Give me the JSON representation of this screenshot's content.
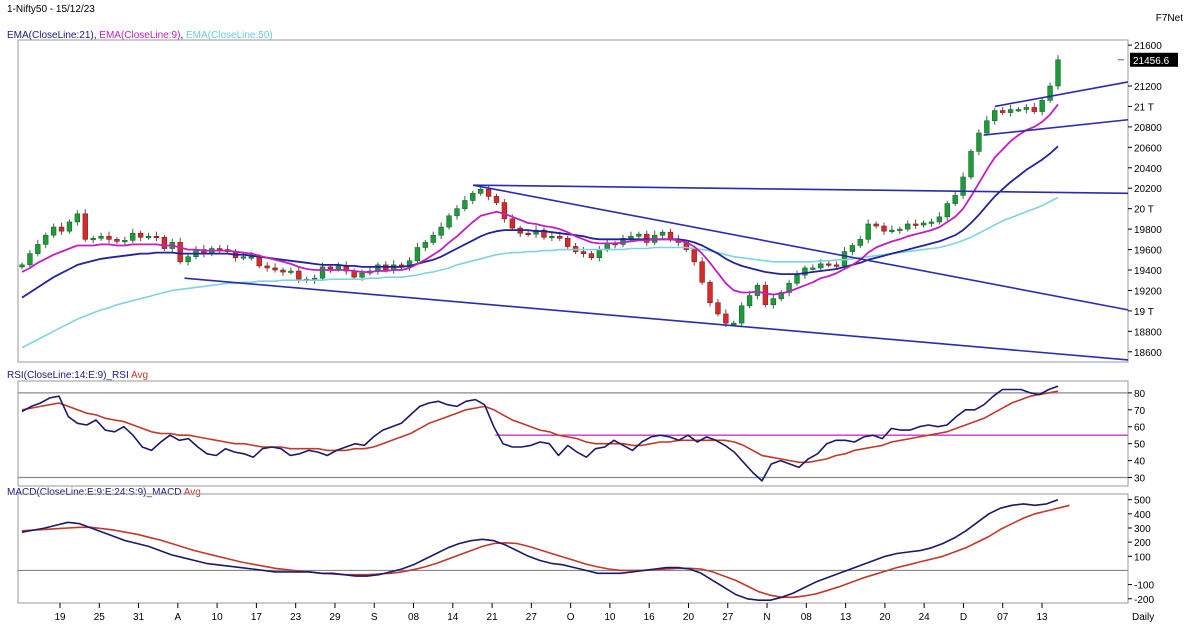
{
  "header": {
    "title": "1-Nifty50 - 15/12/23",
    "brand": "F7Net",
    "ema_labels": [
      {
        "text": "EMA(CloseLine:21)",
        "color": "#1a1a80"
      },
      {
        "text": "EMA(CloseLine:9)",
        "color": "#c020c0"
      },
      {
        "text": "EMA(CloseLine:50)",
        "color": "#66ccdd"
      }
    ],
    "last_price": "21456.6"
  },
  "chart_data": [
    {
      "type": "candlestick",
      "title": "1-Nifty50 - 15/12/23",
      "x_tick_labels": [
        "19",
        "25",
        "31",
        "A",
        "10",
        "17",
        "23",
        "29",
        "S",
        "08",
        "14",
        "21",
        "27",
        "O",
        "10",
        "16",
        "20",
        "27",
        "N",
        "08",
        "13",
        "20",
        "24",
        "D",
        "07",
        "13"
      ],
      "y_tick_labels": [
        "21600",
        "21200",
        "21 T",
        "20800",
        "20600",
        "20400",
        "20200",
        "20 T",
        "19800",
        "19600",
        "19400",
        "19200",
        "19 T",
        "18800",
        "18600"
      ],
      "ylim": [
        18500,
        21650
      ],
      "x_right_label": "Daily",
      "last_price": 21456.6,
      "close_series": [
        19450,
        19560,
        19650,
        19740,
        19820,
        19780,
        19870,
        19950,
        19700,
        19710,
        19730,
        19700,
        19680,
        19690,
        19760,
        19720,
        19730,
        19720,
        19610,
        19670,
        19480,
        19530,
        19600,
        19560,
        19610,
        19600,
        19580,
        19520,
        19530,
        19530,
        19440,
        19420,
        19400,
        19380,
        19390,
        19310,
        19300,
        19320,
        19430,
        19410,
        19440,
        19390,
        19330,
        19370,
        19390,
        19450,
        19400,
        19450,
        19430,
        19490,
        19620,
        19670,
        19740,
        19820,
        19930,
        20000,
        20080,
        20150,
        20190,
        20120,
        20060,
        19900,
        19810,
        19760,
        19750,
        19790,
        19720,
        19730,
        19710,
        19630,
        19580,
        19560,
        19520,
        19600,
        19660,
        19650,
        19710,
        19730,
        19750,
        19670,
        19740,
        19770,
        19700,
        19670,
        19600,
        19480,
        19280,
        19080,
        18970,
        18880,
        18880,
        19050,
        19150,
        19250,
        19060,
        19120,
        19180,
        19270,
        19350,
        19420,
        19420,
        19460,
        19450,
        19440,
        19580,
        19640,
        19700,
        19850,
        19830,
        19780,
        19790,
        19800,
        19850,
        19840,
        19860,
        19870,
        19920,
        20050,
        20130,
        20310,
        20560,
        20740,
        20860,
        20960,
        20940,
        20970,
        20970,
        20990,
        20950,
        21060,
        21200,
        21456.6
      ],
      "ema9": [
        19380,
        19420,
        19470,
        19510,
        19550,
        19580,
        19610,
        19640,
        19640,
        19640,
        19650,
        19650,
        19640,
        19640,
        19650,
        19650,
        19650,
        19650,
        19640,
        19640,
        19620,
        19600,
        19600,
        19590,
        19590,
        19590,
        19590,
        19580,
        19570,
        19560,
        19540,
        19520,
        19500,
        19480,
        19460,
        19430,
        19410,
        19400,
        19400,
        19400,
        19400,
        19400,
        19390,
        19380,
        19380,
        19390,
        19390,
        19400,
        19400,
        19420,
        19460,
        19500,
        19550,
        19600,
        19670,
        19730,
        19800,
        19870,
        19930,
        19950,
        19970,
        19950,
        19920,
        19890,
        19860,
        19850,
        19830,
        19820,
        19800,
        19770,
        19730,
        19700,
        19670,
        19660,
        19660,
        19660,
        19670,
        19680,
        19690,
        19690,
        19700,
        19700,
        19700,
        19690,
        19670,
        19630,
        19560,
        19470,
        19370,
        19270,
        19200,
        19180,
        19180,
        19190,
        19170,
        19160,
        19170,
        19190,
        19220,
        19250,
        19280,
        19320,
        19340,
        19370,
        19410,
        19450,
        19500,
        19570,
        19620,
        19650,
        19680,
        19700,
        19730,
        19750,
        19770,
        19790,
        19820,
        19870,
        19920,
        20000,
        20120,
        20250,
        20380,
        20500,
        20580,
        20660,
        20720,
        20770,
        20800,
        20850,
        20920,
        21020
      ],
      "ema21": [
        19130,
        19180,
        19230,
        19280,
        19330,
        19370,
        19410,
        19450,
        19470,
        19490,
        19510,
        19520,
        19530,
        19540,
        19550,
        19560,
        19560,
        19570,
        19570,
        19570,
        19560,
        19560,
        19560,
        19560,
        19560,
        19560,
        19560,
        19550,
        19550,
        19540,
        19530,
        19520,
        19510,
        19500,
        19490,
        19480,
        19470,
        19460,
        19450,
        19450,
        19450,
        19440,
        19440,
        19430,
        19430,
        19430,
        19430,
        19430,
        19430,
        19440,
        19460,
        19480,
        19500,
        19530,
        19570,
        19610,
        19650,
        19690,
        19730,
        19760,
        19780,
        19790,
        19790,
        19790,
        19790,
        19780,
        19780,
        19770,
        19760,
        19750,
        19740,
        19730,
        19710,
        19700,
        19700,
        19700,
        19700,
        19700,
        19700,
        19700,
        19700,
        19700,
        19700,
        19700,
        19690,
        19670,
        19640,
        19600,
        19560,
        19510,
        19470,
        19440,
        19420,
        19400,
        19380,
        19370,
        19360,
        19360,
        19360,
        19370,
        19380,
        19390,
        19400,
        19410,
        19430,
        19450,
        19470,
        19500,
        19520,
        19540,
        19560,
        19580,
        19600,
        19620,
        19640,
        19660,
        19680,
        19710,
        19740,
        19790,
        19860,
        19940,
        20030,
        20120,
        20190,
        20260,
        20320,
        20380,
        20430,
        20480,
        20540,
        20610
      ],
      "ema50": [
        18640,
        18680,
        18720,
        18760,
        18800,
        18840,
        18880,
        18920,
        18950,
        18980,
        19010,
        19030,
        19060,
        19080,
        19100,
        19120,
        19140,
        19160,
        19180,
        19200,
        19210,
        19220,
        19230,
        19240,
        19250,
        19260,
        19270,
        19270,
        19280,
        19280,
        19290,
        19290,
        19290,
        19300,
        19300,
        19300,
        19300,
        19300,
        19300,
        19310,
        19310,
        19310,
        19310,
        19310,
        19320,
        19320,
        19330,
        19330,
        19330,
        19340,
        19350,
        19370,
        19380,
        19400,
        19420,
        19450,
        19470,
        19490,
        19510,
        19530,
        19550,
        19560,
        19570,
        19570,
        19580,
        19580,
        19590,
        19590,
        19600,
        19600,
        19600,
        19600,
        19600,
        19600,
        19600,
        19600,
        19600,
        19610,
        19610,
        19610,
        19620,
        19620,
        19620,
        19620,
        19620,
        19610,
        19600,
        19590,
        19570,
        19550,
        19530,
        19520,
        19510,
        19500,
        19490,
        19480,
        19480,
        19480,
        19480,
        19480,
        19480,
        19490,
        19490,
        19500,
        19500,
        19510,
        19520,
        19530,
        19540,
        19550,
        19560,
        19570,
        19580,
        19590,
        19600,
        19610,
        19620,
        19640,
        19660,
        19690,
        19720,
        19760,
        19800,
        19840,
        19880,
        19910,
        19940,
        19970,
        20000,
        20030,
        20070,
        20110
      ],
      "trendlines": [
        {
          "from": [
            0.15,
            19320
          ],
          "to": [
            1.0,
            18520
          ]
        },
        {
          "from": [
            0.41,
            20230
          ],
          "to": [
            1.0,
            19010
          ]
        },
        {
          "from": [
            0.41,
            20230
          ],
          "to": [
            1.0,
            20150
          ]
        },
        {
          "from": [
            0.87,
            20720
          ],
          "to": [
            1.0,
            20870
          ]
        },
        {
          "from": [
            0.88,
            21000
          ],
          "to": [
            1.0,
            21240
          ]
        }
      ]
    },
    {
      "type": "line",
      "title": "RSI(CloseLine:14:E:9)_RSI Avg",
      "series_labels": [
        "RSI(CloseLine:14:E:9)_RSI",
        "Avg"
      ],
      "y_tick_labels": [
        "80",
        "70",
        "60",
        "50",
        "40",
        "30"
      ],
      "ylim": [
        25,
        87
      ],
      "reference_lines": [
        80,
        30
      ],
      "horizontal_line": {
        "from_x": 0.43,
        "value": 55
      },
      "rsi": [
        69,
        72,
        74,
        77,
        78,
        66,
        62,
        61,
        64,
        58,
        57,
        60,
        55,
        48,
        46,
        51,
        55,
        52,
        53,
        48,
        44,
        43,
        47,
        45,
        44,
        42,
        47,
        48,
        47,
        43,
        44,
        46,
        45,
        43,
        46,
        48,
        50,
        49,
        54,
        58,
        60,
        62,
        67,
        72,
        74,
        75,
        73,
        72,
        75,
        76,
        73,
        60,
        50,
        48,
        48,
        49,
        51,
        50,
        43,
        49,
        45,
        42,
        47,
        48,
        52,
        49,
        46,
        51,
        54,
        55,
        54,
        52,
        55,
        51,
        54,
        52,
        49,
        45,
        39,
        33,
        28,
        38,
        40,
        38,
        36,
        41,
        44,
        50,
        52,
        52,
        51,
        54,
        55,
        53,
        59,
        58,
        58,
        60,
        61,
        60,
        61,
        66,
        70,
        70,
        73,
        78,
        82,
        82,
        82,
        80,
        79,
        82,
        84
      ],
      "avg": [
        70,
        71,
        72,
        73,
        74,
        72,
        70,
        68,
        67,
        65,
        64,
        63,
        61,
        59,
        57,
        56,
        56,
        55,
        55,
        54,
        53,
        52,
        51,
        50,
        50,
        49,
        48,
        48,
        48,
        47,
        47,
        47,
        47,
        46,
        46,
        46,
        47,
        47,
        48,
        50,
        52,
        54,
        56,
        59,
        62,
        64,
        66,
        68,
        70,
        71,
        72,
        70,
        67,
        64,
        62,
        60,
        58,
        57,
        55,
        54,
        53,
        51,
        50,
        50,
        50,
        50,
        49,
        49,
        50,
        51,
        51,
        52,
        52,
        52,
        52,
        52,
        52,
        51,
        49,
        46,
        43,
        42,
        41,
        40,
        39,
        39,
        40,
        41,
        43,
        44,
        46,
        47,
        48,
        49,
        51,
        52,
        53,
        54,
        55,
        56,
        57,
        59,
        61,
        63,
        65,
        68,
        71,
        74,
        76,
        78,
        79,
        80,
        81
      ]
    },
    {
      "type": "line",
      "title": "MACD(CloseLine:E:9:E:24:S:9)_MACD Avg",
      "series_labels": [
        "MACD(CloseLine:E:9:E:24:S:9)_MACD",
        "Avg"
      ],
      "y_tick_labels": [
        "500",
        "400",
        "300",
        "200",
        "100",
        "-100",
        "-200"
      ],
      "ylim": [
        -230,
        540
      ],
      "zero_line": 0,
      "macd": [
        270,
        285,
        300,
        320,
        340,
        330,
        300,
        270,
        240,
        210,
        190,
        170,
        140,
        110,
        90,
        70,
        50,
        40,
        30,
        20,
        10,
        0,
        -10,
        -10,
        -10,
        -10,
        -20,
        -20,
        -30,
        -40,
        -40,
        -30,
        -10,
        10,
        40,
        80,
        120,
        160,
        190,
        210,
        220,
        210,
        180,
        140,
        100,
        70,
        50,
        40,
        20,
        0,
        -20,
        -20,
        -20,
        -10,
        0,
        10,
        20,
        20,
        10,
        -20,
        -70,
        -120,
        -170,
        -200,
        -210,
        -210,
        -190,
        -160,
        -120,
        -80,
        -50,
        -20,
        10,
        40,
        70,
        100,
        120,
        130,
        140,
        160,
        190,
        230,
        280,
        340,
        400,
        440,
        460,
        470,
        460,
        470,
        500
      ],
      "avg": [
        280,
        285,
        290,
        295,
        300,
        305,
        305,
        295,
        285,
        270,
        255,
        235,
        215,
        190,
        165,
        140,
        120,
        100,
        80,
        60,
        45,
        30,
        15,
        5,
        -5,
        -10,
        -20,
        -25,
        -30,
        -30,
        -30,
        -25,
        -20,
        -10,
        5,
        25,
        50,
        80,
        110,
        140,
        170,
        190,
        195,
        190,
        170,
        145,
        120,
        95,
        70,
        45,
        25,
        10,
        0,
        0,
        0,
        5,
        10,
        15,
        15,
        10,
        -10,
        -40,
        -70,
        -110,
        -150,
        -175,
        -190,
        -190,
        -180,
        -165,
        -140,
        -115,
        -85,
        -55,
        -30,
        -5,
        20,
        40,
        60,
        80,
        100,
        130,
        160,
        200,
        240,
        290,
        330,
        370,
        400,
        420,
        440,
        460
      ],
      "x_right_label": "Daily"
    }
  ]
}
